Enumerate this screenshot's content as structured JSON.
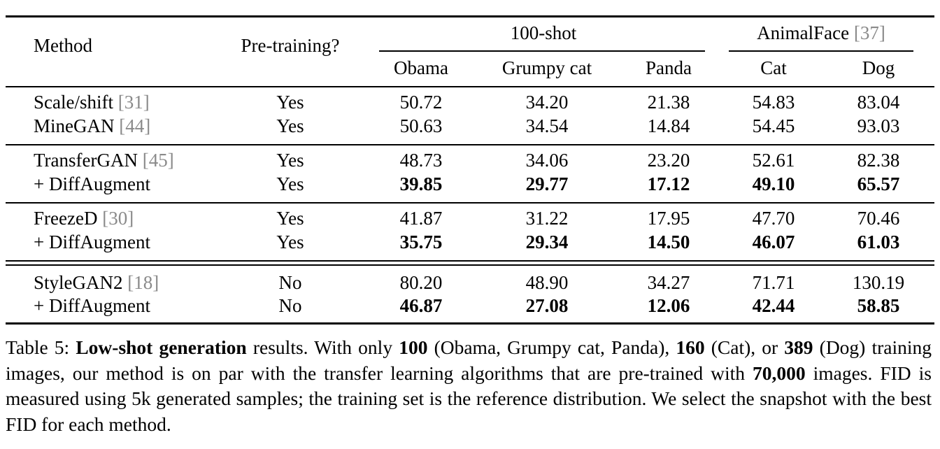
{
  "table": {
    "headers": {
      "method": "Method",
      "pretraining": "Pre-training?",
      "group_100shot": "100-shot",
      "group_animalface": "AnimalFace",
      "group_animalface_ref": "[37]",
      "cols": [
        "Obama",
        "Grumpy cat",
        "Panda",
        "Cat",
        "Dog"
      ]
    },
    "rows": [
      {
        "method": "Scale/shift",
        "ref": "[31]",
        "pre": "Yes",
        "vals": [
          "50.72",
          "34.20",
          "21.38",
          "54.83",
          "83.04"
        ],
        "bold": false
      },
      {
        "method": "MineGAN",
        "ref": "[44]",
        "pre": "Yes",
        "vals": [
          "50.63",
          "34.54",
          "14.84",
          "54.45",
          "93.03"
        ],
        "bold": false
      },
      {
        "method": "TransferGAN",
        "ref": "[45]",
        "pre": "Yes",
        "vals": [
          "48.73",
          "34.06",
          "23.20",
          "52.61",
          "82.38"
        ],
        "bold": false
      },
      {
        "method": "+ DiffAugment",
        "ref": "",
        "pre": "Yes",
        "vals": [
          "39.85",
          "29.77",
          "17.12",
          "49.10",
          "65.57"
        ],
        "bold": true
      },
      {
        "method": "FreezeD",
        "ref": "[30]",
        "pre": "Yes",
        "vals": [
          "41.87",
          "31.22",
          "17.95",
          "47.70",
          "70.46"
        ],
        "bold": false
      },
      {
        "method": "+ DiffAugment",
        "ref": "",
        "pre": "Yes",
        "vals": [
          "35.75",
          "29.34",
          "14.50",
          "46.07",
          "61.03"
        ],
        "bold": true
      },
      {
        "method": "StyleGAN2",
        "ref": "[18]",
        "pre": "No",
        "vals": [
          "80.20",
          "48.90",
          "34.27",
          "71.71",
          "130.19"
        ],
        "bold": false
      },
      {
        "method": "+ DiffAugment",
        "ref": "",
        "pre": "No",
        "vals": [
          "46.87",
          "27.08",
          "12.06",
          "42.44",
          "58.85"
        ],
        "bold": true
      }
    ]
  },
  "caption": {
    "p1": "Table 5: ",
    "b1": "Low-shot generation",
    "p2": " results.  With only ",
    "b2": "100",
    "p3": " (Obama, Grumpy cat, Panda), ",
    "b3": "160",
    "p4": " (Cat), or ",
    "b4": "389",
    "p5": " (Dog) training images, our method is on par with the transfer learning algorithms that are pre-trained with ",
    "b5": "70,000",
    "p6": " images. FID is measured using 5k generated samples; the training set is the reference distribution. We select the snapshot with the best FID for each method."
  }
}
